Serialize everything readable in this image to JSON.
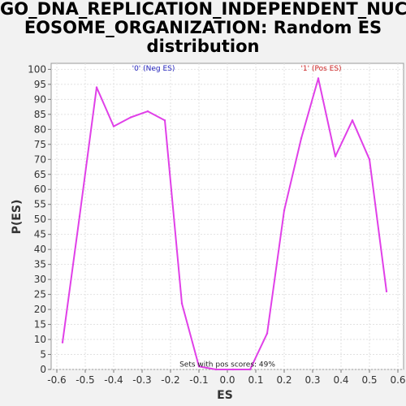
{
  "chart_data": {
    "type": "line",
    "title_lines": [
      "GO_DNA_REPLICATION_INDEPENDENT_NUCL",
      "EOSOME_ORGANIZATION: Random ES",
      "distribution"
    ],
    "xlabel": "ES",
    "ylabel": "P(ES)",
    "xlim": [
      -0.62,
      0.62
    ],
    "ylim": [
      0,
      102
    ],
    "x_ticks": [
      "-0.6",
      "-0.5",
      "-0.4",
      "-0.3",
      "-0.2",
      "-0.1",
      "0.0",
      "0.1",
      "0.2",
      "0.3",
      "0.4",
      "0.5",
      "0.6"
    ],
    "y_ticks": [
      "0",
      "5",
      "10",
      "15",
      "20",
      "25",
      "30",
      "35",
      "40",
      "45",
      "50",
      "55",
      "60",
      "65",
      "70",
      "75",
      "80",
      "85",
      "90",
      "95",
      "100"
    ],
    "grid": true,
    "series": [
      {
        "color": "#e040e8",
        "x": [
          -0.58,
          -0.52,
          -0.46,
          -0.4,
          -0.34,
          -0.28,
          -0.22,
          -0.16,
          -0.1,
          -0.04,
          0.02,
          0.08,
          0.14,
          0.2,
          0.26,
          0.32,
          0.38,
          0.44,
          0.5,
          0.56
        ],
        "y": [
          9,
          51,
          94,
          81,
          84,
          86,
          83,
          22,
          1,
          0,
          0,
          0,
          12,
          53,
          77,
          97,
          71,
          83,
          70,
          26
        ]
      }
    ],
    "annotations": [
      {
        "text": "'0' (Neg ES)",
        "x": -0.26,
        "y": 99.5,
        "color": "#2222bb"
      },
      {
        "text": "'1' (Pos ES)",
        "x": 0.33,
        "y": 99.5,
        "color": "#cc2222"
      },
      {
        "text": "Sets with pos scores: 49%",
        "x": 0.0,
        "y": 1,
        "color": "#222222"
      }
    ]
  }
}
